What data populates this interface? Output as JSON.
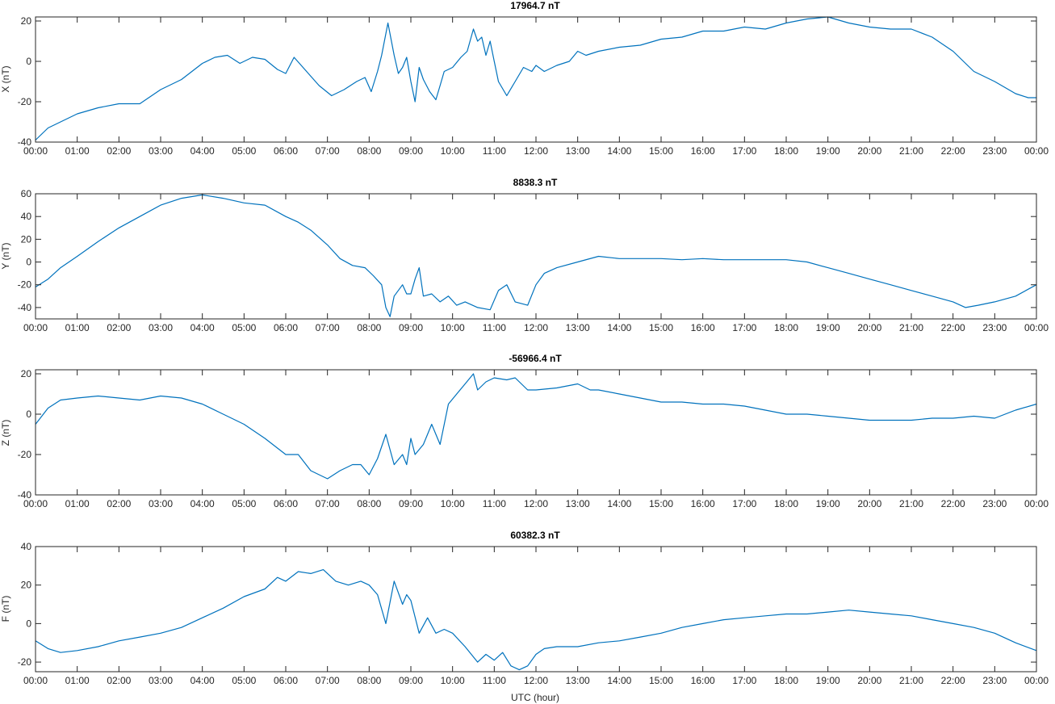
{
  "chart_data": [
    {
      "type": "line",
      "title": "17964.7 nT",
      "xlabel": "",
      "ylabel": "X (nT)",
      "ylim": [
        -40,
        22
      ],
      "yticks": [
        -40,
        -20,
        0,
        20
      ],
      "x_tick_labels": [
        "00:00",
        "01:00",
        "02:00",
        "03:00",
        "04:00",
        "05:00",
        "06:00",
        "07:00",
        "08:00",
        "09:00",
        "10:00",
        "11:00",
        "12:00",
        "13:00",
        "14:00",
        "15:00",
        "16:00",
        "17:00",
        "18:00",
        "19:00",
        "20:00",
        "21:00",
        "22:00",
        "23:00",
        "00:00"
      ],
      "xlim_hours": [
        0,
        24
      ],
      "series": [
        {
          "color": "#0072bd",
          "x": [
            0,
            0.3,
            0.6,
            1.0,
            1.5,
            2.0,
            2.5,
            3.0,
            3.5,
            4.0,
            4.3,
            4.6,
            4.9,
            5.2,
            5.5,
            5.8,
            6.0,
            6.2,
            6.5,
            6.8,
            7.1,
            7.4,
            7.7,
            7.9,
            8.05,
            8.2,
            8.3,
            8.45,
            8.6,
            8.7,
            8.8,
            8.9,
            9.0,
            9.1,
            9.2,
            9.3,
            9.45,
            9.6,
            9.7,
            9.8,
            10.0,
            10.2,
            10.35,
            10.5,
            10.6,
            10.7,
            10.8,
            10.9,
            11.0,
            11.1,
            11.3,
            11.5,
            11.7,
            11.9,
            12.0,
            12.2,
            12.5,
            12.8,
            13.0,
            13.2,
            13.5,
            14.0,
            14.5,
            15.0,
            15.5,
            16.0,
            16.5,
            17.0,
            17.5,
            18.0,
            18.5,
            19.0,
            19.5,
            20.0,
            20.5,
            21.0,
            21.5,
            22.0,
            22.5,
            23.0,
            23.5,
            23.8,
            24.0
          ],
          "y": [
            -39,
            -33,
            -30,
            -26,
            -23,
            -21,
            -21,
            -14,
            -9,
            -1,
            2,
            3,
            -1,
            2,
            1,
            -4,
            -6,
            2,
            -5,
            -12,
            -17,
            -14,
            -10,
            -8,
            -15,
            -5,
            3,
            19,
            3,
            -6,
            -3,
            2,
            -10,
            -20,
            -3,
            -9,
            -15,
            -19,
            -12,
            -5,
            -3,
            2,
            5,
            16,
            10,
            12,
            3,
            10,
            0,
            -10,
            -17,
            -10,
            -3,
            -5,
            -2,
            -5,
            -2,
            0,
            5,
            3,
            5,
            7,
            8,
            11,
            12,
            15,
            15,
            17,
            16,
            19,
            21,
            22,
            19,
            17,
            16,
            16,
            12,
            5,
            -5,
            -10,
            -16,
            -18,
            -18
          ]
        }
      ]
    },
    {
      "type": "line",
      "title": "8838.3 nT",
      "xlabel": "",
      "ylabel": "Y (nT)",
      "ylim": [
        -50,
        60
      ],
      "yticks": [
        -40,
        -20,
        0,
        20,
        40,
        60
      ],
      "x_tick_labels": [
        "00:00",
        "01:00",
        "02:00",
        "03:00",
        "04:00",
        "05:00",
        "06:00",
        "07:00",
        "08:00",
        "09:00",
        "10:00",
        "11:00",
        "12:00",
        "13:00",
        "14:00",
        "15:00",
        "16:00",
        "17:00",
        "18:00",
        "19:00",
        "20:00",
        "21:00",
        "22:00",
        "23:00",
        "00:00"
      ],
      "xlim_hours": [
        0,
        24
      ],
      "series": [
        {
          "color": "#0072bd",
          "x": [
            0,
            0.3,
            0.6,
            1.0,
            1.5,
            2.0,
            2.5,
            3.0,
            3.5,
            4.0,
            4.5,
            5.0,
            5.5,
            6.0,
            6.3,
            6.6,
            7.0,
            7.3,
            7.6,
            7.9,
            8.1,
            8.3,
            8.4,
            8.5,
            8.6,
            8.8,
            8.9,
            9.0,
            9.1,
            9.2,
            9.3,
            9.5,
            9.7,
            9.9,
            10.1,
            10.3,
            10.6,
            10.9,
            11.1,
            11.3,
            11.5,
            11.8,
            12.0,
            12.2,
            12.5,
            13.0,
            13.5,
            14.0,
            14.5,
            15.0,
            15.5,
            16.0,
            16.5,
            17.0,
            17.5,
            18.0,
            18.5,
            19.0,
            19.5,
            20.0,
            20.5,
            21.0,
            21.5,
            22.0,
            22.3,
            22.6,
            23.0,
            23.5,
            24.0
          ],
          "y": [
            -22,
            -15,
            -5,
            5,
            18,
            30,
            40,
            50,
            56,
            59,
            56,
            52,
            50,
            40,
            35,
            28,
            15,
            3,
            -3,
            -5,
            -12,
            -20,
            -40,
            -48,
            -30,
            -20,
            -28,
            -28,
            -15,
            -5,
            -30,
            -28,
            -35,
            -30,
            -38,
            -35,
            -40,
            -42,
            -25,
            -20,
            -35,
            -38,
            -20,
            -10,
            -5,
            0,
            5,
            3,
            3,
            3,
            2,
            3,
            2,
            2,
            2,
            2,
            0,
            -5,
            -10,
            -15,
            -20,
            -25,
            -30,
            -35,
            -40,
            -38,
            -35,
            -30,
            -20
          ]
        }
      ]
    },
    {
      "type": "line",
      "title": "-56966.4 nT",
      "xlabel": "",
      "ylabel": "Z (nT)",
      "ylim": [
        -40,
        22
      ],
      "yticks": [
        -40,
        -20,
        0,
        20
      ],
      "x_tick_labels": [
        "00:00",
        "01:00",
        "02:00",
        "03:00",
        "04:00",
        "05:00",
        "06:00",
        "07:00",
        "08:00",
        "09:00",
        "10:00",
        "11:00",
        "12:00",
        "13:00",
        "14:00",
        "15:00",
        "16:00",
        "17:00",
        "18:00",
        "19:00",
        "20:00",
        "21:00",
        "22:00",
        "23:00",
        "00:00"
      ],
      "xlim_hours": [
        0,
        24
      ],
      "series": [
        {
          "color": "#0072bd",
          "x": [
            0,
            0.3,
            0.6,
            1.0,
            1.5,
            2.0,
            2.5,
            3.0,
            3.5,
            4.0,
            4.5,
            5.0,
            5.5,
            6.0,
            6.3,
            6.6,
            6.8,
            7.0,
            7.3,
            7.6,
            7.8,
            8.0,
            8.2,
            8.4,
            8.6,
            8.8,
            8.9,
            9.0,
            9.1,
            9.3,
            9.5,
            9.7,
            9.9,
            10.1,
            10.3,
            10.5,
            10.6,
            10.8,
            11.0,
            11.3,
            11.5,
            11.8,
            12.0,
            12.5,
            13.0,
            13.3,
            13.5,
            14.0,
            14.5,
            15.0,
            15.5,
            16.0,
            16.5,
            17.0,
            17.5,
            18.0,
            18.5,
            19.0,
            19.5,
            20.0,
            20.5,
            21.0,
            21.5,
            22.0,
            22.5,
            23.0,
            23.5,
            24.0
          ],
          "y": [
            -5,
            3,
            7,
            8,
            9,
            8,
            7,
            9,
            8,
            5,
            0,
            -5,
            -12,
            -20,
            -20,
            -28,
            -30,
            -32,
            -28,
            -25,
            -25,
            -30,
            -22,
            -10,
            -25,
            -20,
            -25,
            -12,
            -20,
            -15,
            -5,
            -15,
            5,
            10,
            15,
            20,
            12,
            16,
            18,
            17,
            18,
            12,
            12,
            13,
            15,
            12,
            12,
            10,
            8,
            6,
            6,
            5,
            5,
            4,
            2,
            0,
            0,
            -1,
            -2,
            -3,
            -3,
            -3,
            -2,
            -2,
            -1,
            -2,
            2,
            5
          ]
        }
      ]
    },
    {
      "type": "line",
      "title": "60382.3 nT",
      "xlabel": "UTC (hour)",
      "ylabel": "F (nT)",
      "ylim": [
        -25,
        40
      ],
      "yticks": [
        -20,
        0,
        20,
        40
      ],
      "x_tick_labels": [
        "00:00",
        "01:00",
        "02:00",
        "03:00",
        "04:00",
        "05:00",
        "06:00",
        "07:00",
        "08:00",
        "09:00",
        "10:00",
        "11:00",
        "12:00",
        "13:00",
        "14:00",
        "15:00",
        "16:00",
        "17:00",
        "18:00",
        "19:00",
        "20:00",
        "21:00",
        "22:00",
        "23:00",
        "00:00"
      ],
      "xlim_hours": [
        0,
        24
      ],
      "series": [
        {
          "color": "#0072bd",
          "x": [
            0,
            0.3,
            0.6,
            1.0,
            1.5,
            2.0,
            2.5,
            3.0,
            3.5,
            4.0,
            4.5,
            5.0,
            5.5,
            5.8,
            6.0,
            6.3,
            6.6,
            6.9,
            7.2,
            7.5,
            7.8,
            8.0,
            8.2,
            8.4,
            8.6,
            8.8,
            8.9,
            9.0,
            9.2,
            9.4,
            9.6,
            9.8,
            10.0,
            10.3,
            10.6,
            10.8,
            11.0,
            11.2,
            11.4,
            11.6,
            11.8,
            12.0,
            12.2,
            12.5,
            13.0,
            13.5,
            14.0,
            14.5,
            15.0,
            15.5,
            16.0,
            16.5,
            17.0,
            17.5,
            18.0,
            18.5,
            19.0,
            19.5,
            20.0,
            20.5,
            21.0,
            21.5,
            22.0,
            22.5,
            23.0,
            23.5,
            24.0
          ],
          "y": [
            -9,
            -13,
            -15,
            -14,
            -12,
            -9,
            -7,
            -5,
            -2,
            3,
            8,
            14,
            18,
            24,
            22,
            27,
            26,
            28,
            22,
            20,
            22,
            20,
            15,
            0,
            22,
            10,
            15,
            12,
            -5,
            3,
            -5,
            -3,
            -5,
            -12,
            -20,
            -16,
            -19,
            -15,
            -22,
            -24,
            -22,
            -16,
            -13,
            -12,
            -12,
            -10,
            -9,
            -7,
            -5,
            -2,
            0,
            2,
            3,
            4,
            5,
            5,
            6,
            7,
            6,
            5,
            4,
            2,
            0,
            -2,
            -5,
            -10,
            -14
          ]
        }
      ]
    }
  ]
}
